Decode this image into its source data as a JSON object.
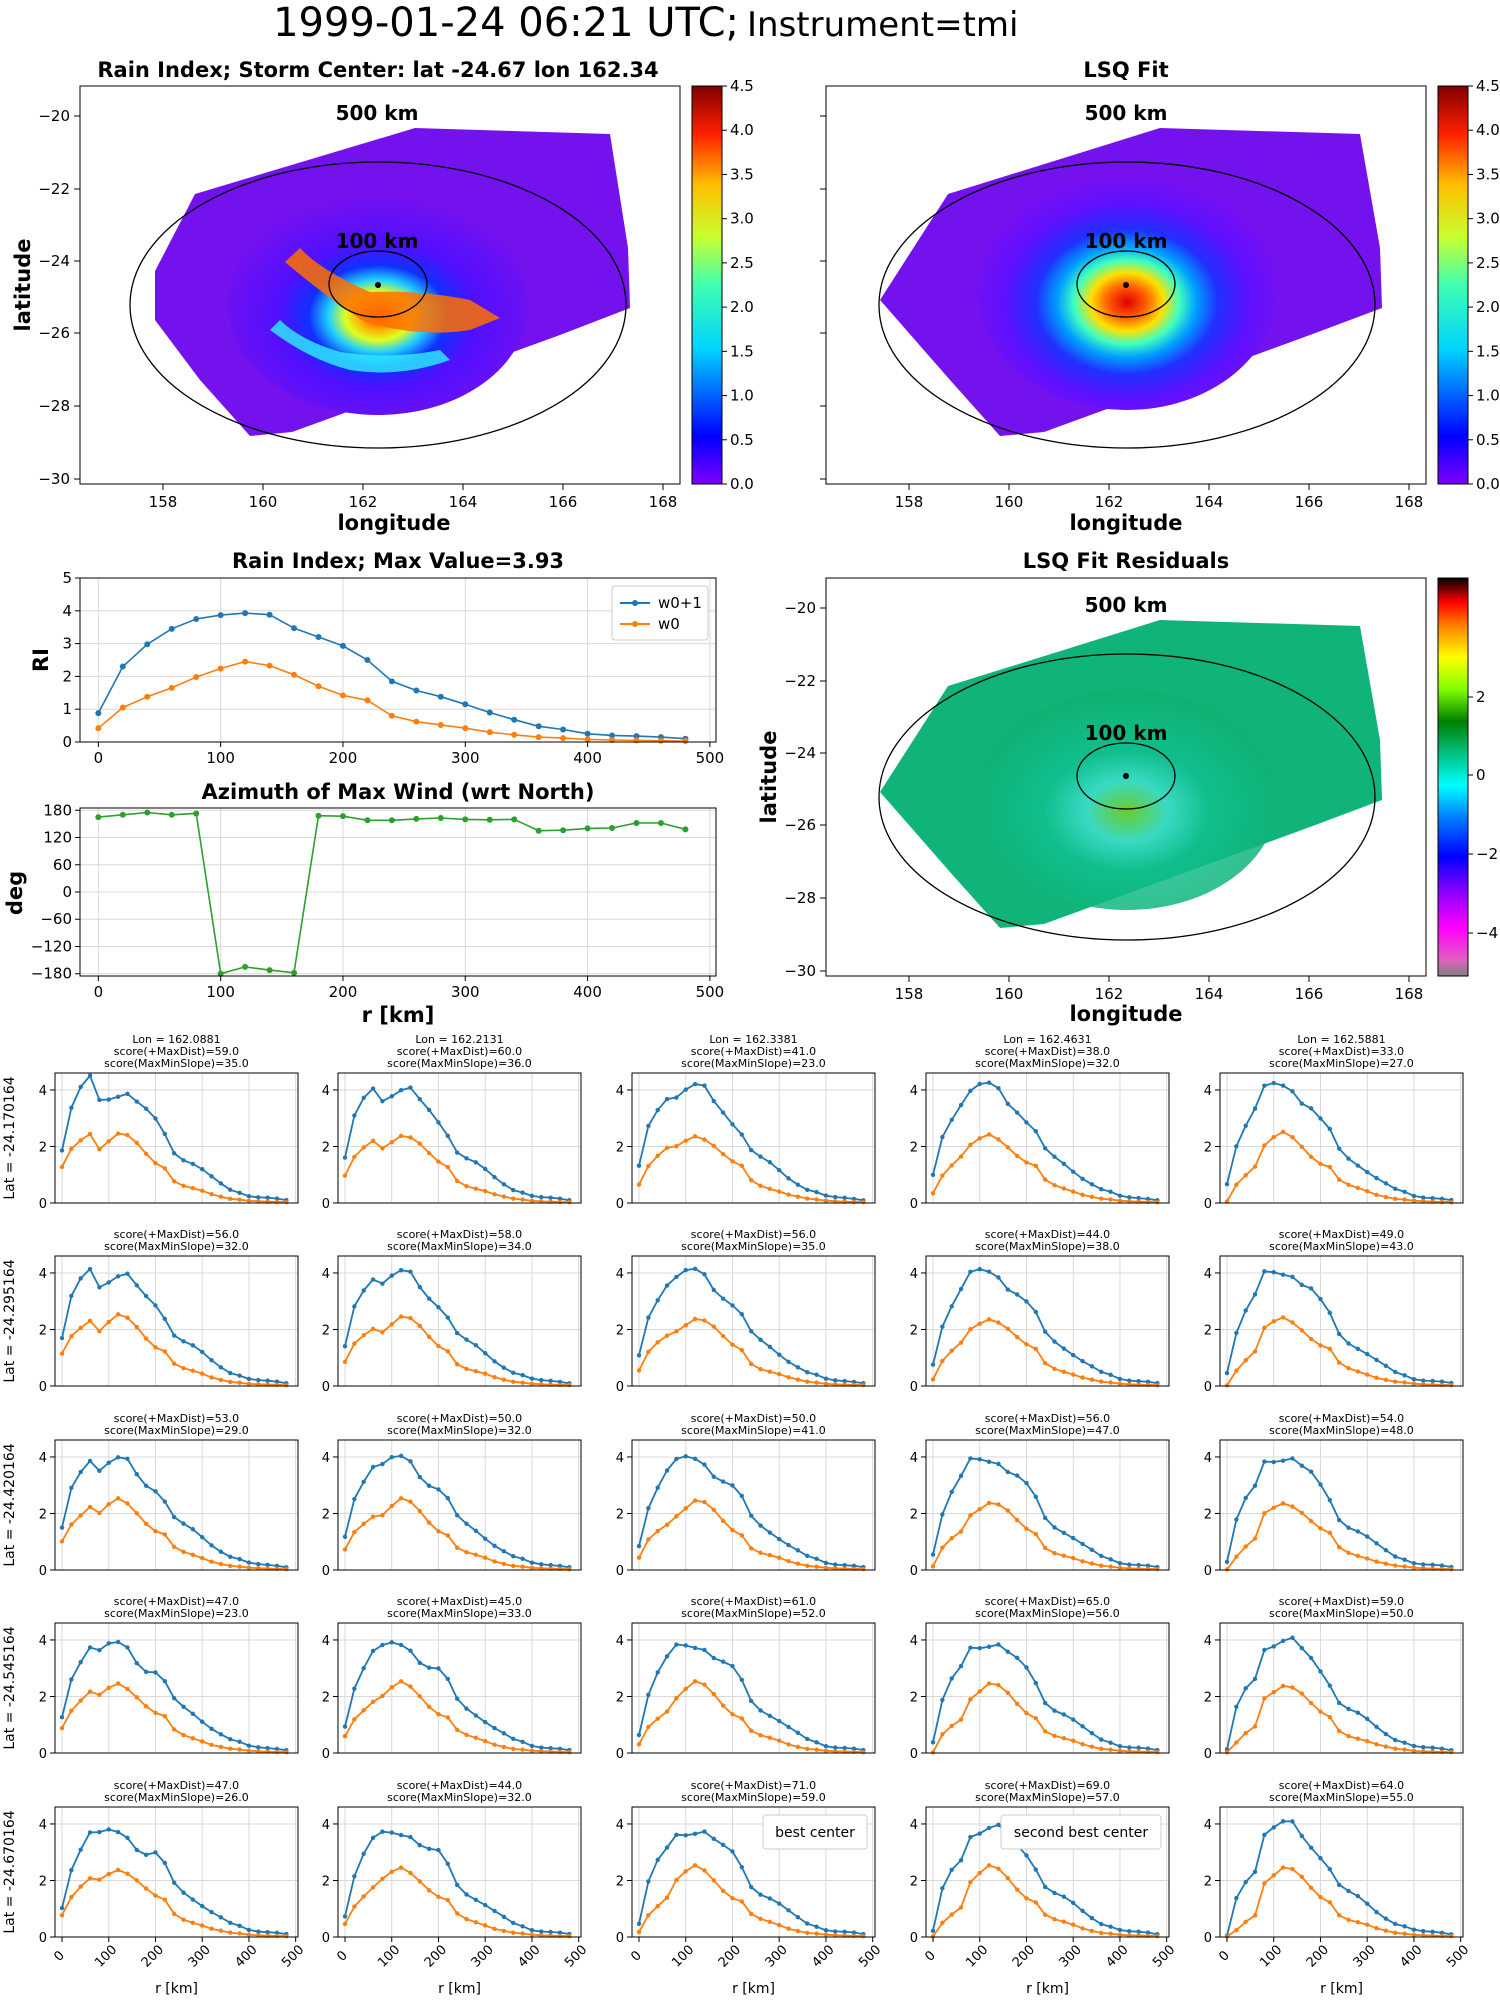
{
  "figure": {
    "title": "1999-01-24 06:21 UTC;",
    "instrument": "Instrument=tmi"
  },
  "colors": {
    "w0p1": "#1f77b4",
    "w0": "#ff7f0e",
    "azimuth": "#2ca02c",
    "best": "#800080",
    "second": "#ff0000",
    "grid": "#d9d9d9"
  },
  "map_panels": {
    "rain": {
      "title": "Rain Index; Storm Center: lat -24.67 lon 162.34",
      "xlabel": "longitude",
      "ylabel": "latitude",
      "ring_outer": "500 km",
      "ring_inner": "100 km",
      "colorbar": "jet",
      "cbar_ticks": [
        "0.0",
        "0.5",
        "1.0",
        "1.5",
        "2.0",
        "2.5",
        "3.0",
        "3.5",
        "4.0",
        "4.5"
      ]
    },
    "lsq": {
      "title": "LSQ Fit",
      "xlabel": "longitude",
      "ring_outer": "500 km",
      "ring_inner": "100 km",
      "colorbar": "jet",
      "cbar_ticks": [
        "0.0",
        "0.5",
        "1.0",
        "1.5",
        "2.0",
        "2.5",
        "3.0",
        "3.5",
        "4.0",
        "4.5"
      ]
    },
    "resid": {
      "title": "LSQ Fit Residuals",
      "xlabel": "longitude",
      "ylabel": "latitude",
      "ring_outer": "500 km",
      "ring_inner": "100 km",
      "colorbar": "gist_ncar-like",
      "cbar_ticks": [
        "2",
        "0",
        "−2",
        "−4"
      ]
    }
  },
  "chart_data": [
    {
      "id": "rain_profile",
      "type": "line",
      "title": "Rain Index; Max Value=3.93",
      "xlabel": "",
      "ylabel": "RI",
      "xlim": [
        -15,
        505
      ],
      "ylim": [
        0,
        5
      ],
      "xticks": [
        0,
        100,
        200,
        300,
        400,
        500
      ],
      "yticks": [
        0,
        1,
        2,
        3,
        4,
        5
      ],
      "legend_position": "top-right",
      "x": [
        0,
        20,
        40,
        60,
        80,
        100,
        120,
        140,
        160,
        180,
        200,
        220,
        240,
        260,
        280,
        300,
        320,
        340,
        360,
        380,
        400,
        420,
        440,
        460,
        480
      ],
      "series": [
        {
          "name": "w0+1",
          "marker": "star",
          "values": [
            0.88,
            2.3,
            2.98,
            3.45,
            3.75,
            3.87,
            3.93,
            3.88,
            3.47,
            3.2,
            2.93,
            2.5,
            1.85,
            1.57,
            1.38,
            1.15,
            0.9,
            0.68,
            0.48,
            0.38,
            0.25,
            0.2,
            0.18,
            0.15,
            0.1
          ]
        },
        {
          "name": "w0",
          "marker": "dot",
          "values": [
            0.42,
            1.05,
            1.38,
            1.65,
            1.98,
            2.24,
            2.45,
            2.33,
            2.05,
            1.7,
            1.42,
            1.27,
            0.8,
            0.62,
            0.52,
            0.42,
            0.3,
            0.22,
            0.15,
            0.12,
            0.08,
            0.06,
            0.05,
            0.04,
            0.03
          ]
        }
      ]
    },
    {
      "id": "azimuth",
      "type": "line",
      "title": "Azimuth of Max Wind (wrt North)",
      "xlabel": "r [km]",
      "ylabel": "deg",
      "xlim": [
        -15,
        505
      ],
      "ylim": [
        -185,
        185
      ],
      "xticks": [
        0,
        100,
        200,
        300,
        400,
        500
      ],
      "yticks": [
        180,
        120,
        60,
        0,
        -60,
        -120,
        -180
      ],
      "x": [
        0,
        20,
        40,
        60,
        80,
        100,
        120,
        140,
        160,
        180,
        200,
        220,
        240,
        260,
        280,
        300,
        320,
        340,
        360,
        380,
        400,
        420,
        440,
        460,
        480
      ],
      "series": [
        {
          "values": [
            165,
            170,
            175,
            170,
            173,
            -180,
            -165,
            -172,
            -178,
            168,
            167,
            158,
            158,
            161,
            163,
            160,
            159,
            160,
            135,
            136,
            140,
            141,
            152,
            152,
            138
          ]
        }
      ]
    },
    {
      "id": "grid_profiles",
      "type": "line",
      "xlabel": "r [km]",
      "xlim": [
        -15,
        505
      ],
      "ylim": [
        0,
        4.6
      ],
      "xticks": [
        0,
        100,
        200,
        300,
        400,
        500
      ],
      "yticks": [
        0,
        2,
        4
      ],
      "x": [
        0,
        20,
        40,
        60,
        80,
        100,
        120,
        140,
        160,
        180,
        200,
        220,
        240,
        260,
        280,
        300,
        320,
        340,
        360,
        380,
        400,
        420,
        440,
        460,
        480
      ],
      "row_labels": [
        "Lat = -24.170164",
        "Lat = -24.295164",
        "Lat = -24.420164",
        "Lat = -24.545164",
        "Lat = -24.670164"
      ],
      "col_lons": [
        "Lon = 162.0881",
        "Lon = 162.2131",
        "Lon = 162.3381",
        "Lon = 162.4631",
        "Lon = 162.5881"
      ],
      "scores": [
        [
          [
            "score(+MaxDist)=59.0",
            "score(MaxMinSlope)=35.0"
          ],
          [
            "score(+MaxDist)=60.0",
            "score(MaxMinSlope)=36.0"
          ],
          [
            "score(+MaxDist)=41.0",
            "score(MaxMinSlope)=23.0"
          ],
          [
            "score(+MaxDist)=38.0",
            "score(MaxMinSlope)=32.0"
          ],
          [
            "score(+MaxDist)=33.0",
            "score(MaxMinSlope)=27.0"
          ]
        ],
        [
          [
            "score(+MaxDist)=56.0",
            "score(MaxMinSlope)=32.0"
          ],
          [
            "score(+MaxDist)=58.0",
            "score(MaxMinSlope)=34.0"
          ],
          [
            "score(+MaxDist)=56.0",
            "score(MaxMinSlope)=35.0"
          ],
          [
            "score(+MaxDist)=44.0",
            "score(MaxMinSlope)=38.0"
          ],
          [
            "score(+MaxDist)=49.0",
            "score(MaxMinSlope)=43.0"
          ]
        ],
        [
          [
            "score(+MaxDist)=53.0",
            "score(MaxMinSlope)=29.0"
          ],
          [
            "score(+MaxDist)=50.0",
            "score(MaxMinSlope)=32.0"
          ],
          [
            "score(+MaxDist)=50.0",
            "score(MaxMinSlope)=41.0"
          ],
          [
            "score(+MaxDist)=56.0",
            "score(MaxMinSlope)=47.0"
          ],
          [
            "score(+MaxDist)=54.0",
            "score(MaxMinSlope)=48.0"
          ]
        ],
        [
          [
            "score(+MaxDist)=47.0",
            "score(MaxMinSlope)=23.0"
          ],
          [
            "score(+MaxDist)=45.0",
            "score(MaxMinSlope)=33.0"
          ],
          [
            "score(+MaxDist)=61.0",
            "score(MaxMinSlope)=52.0"
          ],
          [
            "score(+MaxDist)=65.0",
            "score(MaxMinSlope)=56.0"
          ],
          [
            "score(+MaxDist)=59.0",
            "score(MaxMinSlope)=50.0"
          ]
        ],
        [
          [
            "score(+MaxDist)=47.0",
            "score(MaxMinSlope)=26.0"
          ],
          [
            "score(+MaxDist)=44.0",
            "score(MaxMinSlope)=32.0"
          ],
          [
            "score(+MaxDist)=71.0",
            "score(MaxMinSlope)=59.0"
          ],
          [
            "score(+MaxDist)=69.0",
            "score(MaxMinSlope)=57.0"
          ],
          [
            "score(+MaxDist)=64.0",
            "score(MaxMinSlope)=55.0"
          ]
        ]
      ],
      "legends": {
        "4-2": "best center",
        "4-3": "second best center"
      },
      "score_colors": {
        "4-2": "best",
        "4-3": "second"
      }
    }
  ]
}
